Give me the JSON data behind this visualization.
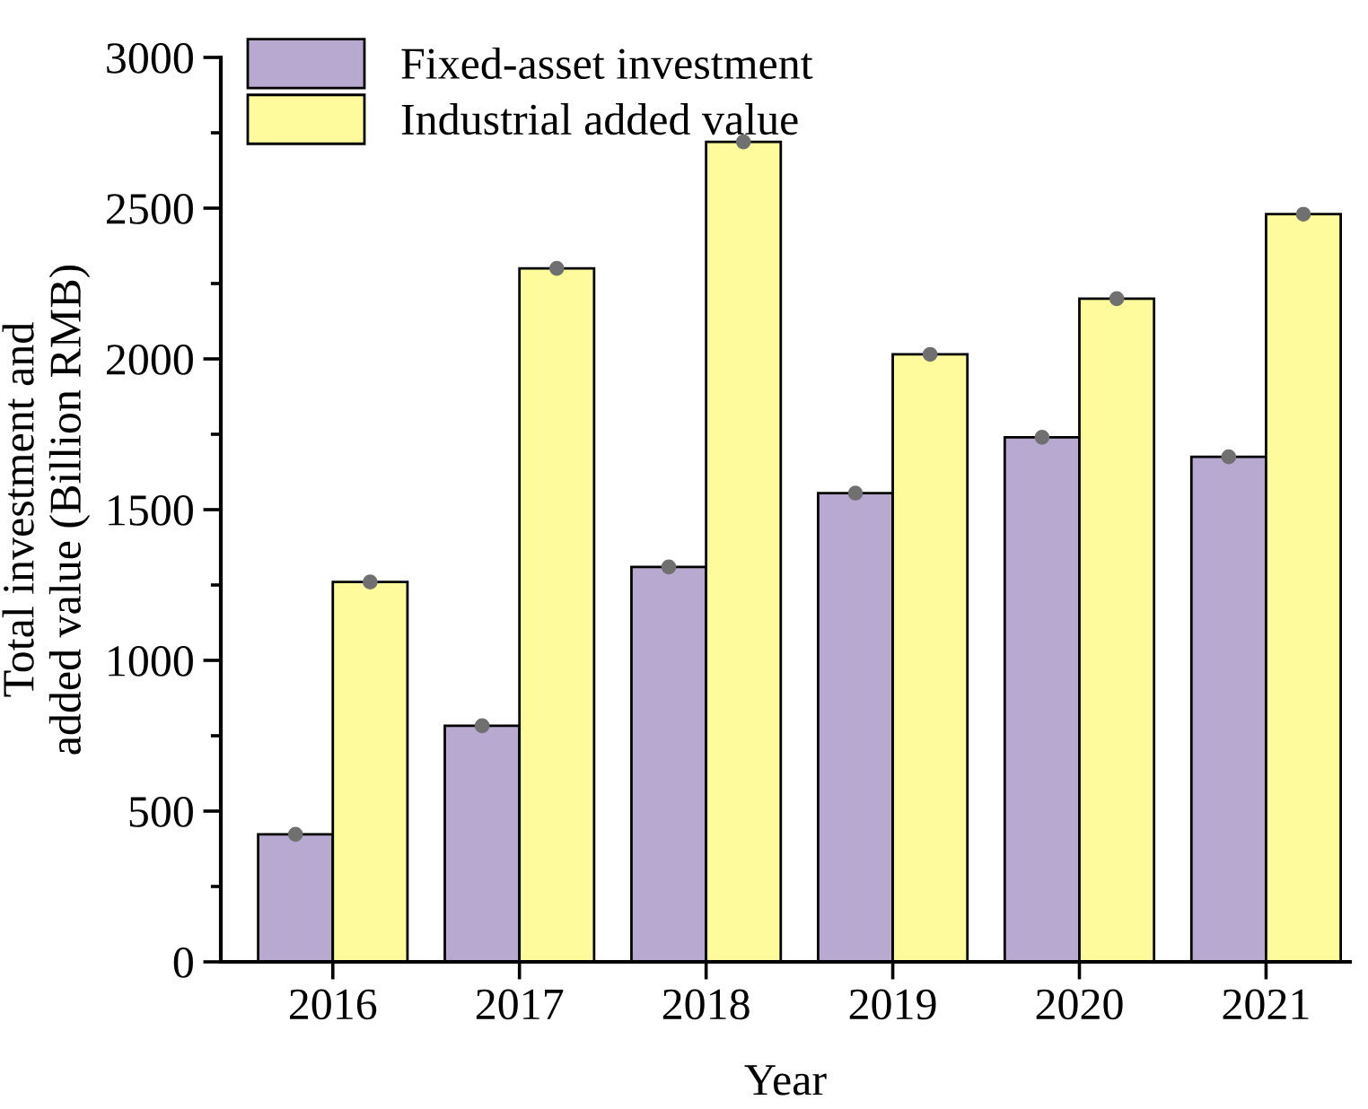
{
  "chart_data": {
    "type": "bar",
    "xlabel": "Year",
    "ylabel": "Total investment and\nadded value (Billion RMB)",
    "categories": [
      "2016",
      "2017",
      "2018",
      "2019",
      "2020",
      "2021"
    ],
    "series": [
      {
        "name": "Fixed-asset investment",
        "color": "#b8a9d0",
        "values": [
          423,
          783,
          1310,
          1555,
          1740,
          1675
        ]
      },
      {
        "name": "Industrial added value",
        "color": "#fdfb9c",
        "values": [
          1260,
          2300,
          2720,
          2015,
          2200,
          2480
        ]
      },
      {
        "type": "scatter",
        "color": "#707070",
        "marker": "circle",
        "values": [
          423,
          783,
          1310,
          1555,
          1740,
          1675
        ]
      },
      {
        "type": "scatter",
        "color": "#707070",
        "marker": "circle",
        "values": [
          1260,
          2300,
          2720,
          2015,
          2200,
          2480
        ]
      }
    ],
    "ylim": [
      0,
      3000
    ],
    "yticks": [
      0,
      500,
      1000,
      1500,
      2000,
      2500,
      3000
    ],
    "legend": "top left",
    "grid": false
  }
}
